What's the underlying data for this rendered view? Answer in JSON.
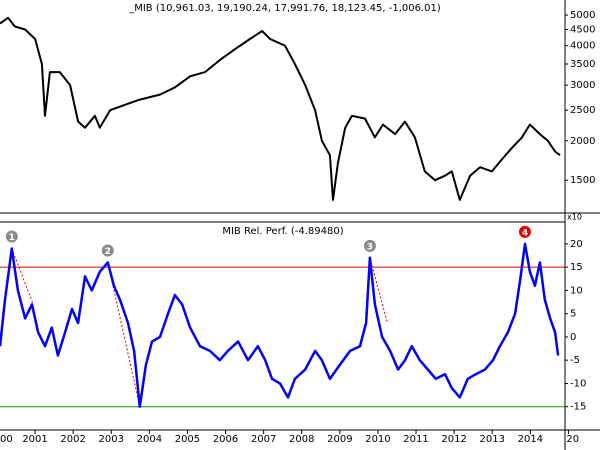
{
  "chart_data": [
    {
      "type": "line",
      "title": "_MIB (10,961.03, 19,190.24, 17,991.76, 18,123.45, -1,006.01)",
      "axis_note": "x10",
      "log_scale": true,
      "color": "#000000",
      "xlim": [
        2000.08,
        2014.91
      ],
      "ylim": [
        1190,
        5580
      ],
      "yticks": [
        1500,
        2000,
        2500,
        3000,
        3500,
        4000,
        4500,
        5000
      ],
      "x": [
        2000.08,
        2000.29,
        2000.47,
        2000.74,
        2001.0,
        2001.18,
        2001.26,
        2001.39,
        2001.65,
        2001.92,
        2002.13,
        2002.31,
        2002.57,
        2002.7,
        2002.97,
        2003.36,
        2003.75,
        2004.28,
        2004.67,
        2005.07,
        2005.46,
        2005.85,
        2006.25,
        2006.64,
        2006.96,
        2007.17,
        2007.56,
        2007.82,
        2008.09,
        2008.35,
        2008.53,
        2008.74,
        2008.82,
        2008.95,
        2009.14,
        2009.32,
        2009.66,
        2009.92,
        2010.13,
        2010.45,
        2010.71,
        2010.97,
        2011.23,
        2011.5,
        2011.76,
        2011.94,
        2012.15,
        2012.42,
        2012.68,
        2012.99,
        2013.26,
        2013.52,
        2013.78,
        2013.99,
        2014.25,
        2014.46,
        2014.65,
        2014.78
      ],
      "values": [
        4700,
        4900,
        4600,
        4500,
        4200,
        3500,
        2400,
        3300,
        3300,
        3000,
        2300,
        2200,
        2400,
        2200,
        2500,
        2600,
        2700,
        2800,
        2950,
        3200,
        3300,
        3600,
        3900,
        4200,
        4450,
        4200,
        4000,
        3500,
        3000,
        2500,
        2000,
        1800,
        1300,
        1700,
        2200,
        2400,
        2350,
        2050,
        2250,
        2100,
        2300,
        2050,
        1600,
        1500,
        1550,
        1600,
        1300,
        1550,
        1650,
        1600,
        1750,
        1900,
        2050,
        2250,
        2100,
        2000,
        1850,
        1800
      ]
    },
    {
      "type": "line",
      "title": "MIB Rel. Perf. (-4.89480)",
      "color": "#0000ff",
      "xlim": [
        2000.08,
        2014.91
      ],
      "ylim": [
        -20,
        24.7
      ],
      "yticks": [
        -15,
        -10,
        -5,
        0,
        5,
        10,
        15,
        20
      ],
      "xticks": [
        {
          "value": 2000,
          "label": "00"
        },
        2001,
        2002,
        2003,
        2004,
        2005,
        2006,
        2007,
        2008,
        2009,
        2010,
        2011,
        2012,
        2013,
        2014,
        {
          "value": 2015,
          "label": "20"
        }
      ],
      "hlines": [
        {
          "value": 15,
          "color": "#e00000"
        },
        {
          "value": -15,
          "color": "#00a000"
        }
      ],
      "x": [
        2000.08,
        2000.21,
        2000.39,
        2000.55,
        2000.74,
        2000.92,
        2001.08,
        2001.26,
        2001.44,
        2001.6,
        2001.79,
        2001.97,
        2002.13,
        2002.31,
        2002.49,
        2002.7,
        2002.91,
        2003.07,
        2003.23,
        2003.44,
        2003.6,
        2003.75,
        2003.91,
        2004.07,
        2004.28,
        2004.49,
        2004.67,
        2004.86,
        2005.07,
        2005.33,
        2005.59,
        2005.85,
        2006.06,
        2006.33,
        2006.59,
        2006.85,
        2007.04,
        2007.22,
        2007.43,
        2007.64,
        2007.82,
        2008.09,
        2008.35,
        2008.53,
        2008.74,
        2009.0,
        2009.27,
        2009.53,
        2009.69,
        2009.79,
        2009.92,
        2010.11,
        2010.32,
        2010.53,
        2010.71,
        2010.89,
        2011.1,
        2011.31,
        2011.52,
        2011.76,
        2011.94,
        2012.15,
        2012.36,
        2012.57,
        2012.81,
        2013.02,
        2013.2,
        2013.41,
        2013.6,
        2013.73,
        2013.86,
        2013.99,
        2014.12,
        2014.25,
        2014.38,
        2014.52,
        2014.65,
        2014.73
      ],
      "values": [
        -2,
        8,
        19,
        10,
        4,
        7,
        1,
        -2,
        2,
        -4,
        1,
        6,
        3,
        13,
        10,
        14,
        16,
        11,
        8,
        3,
        -3,
        -15,
        -6,
        -1,
        0,
        5,
        9,
        7,
        2,
        -2,
        -3,
        -5,
        -3,
        -1,
        -5,
        -2,
        -5,
        -9,
        -10,
        -13,
        -9,
        -7,
        -3,
        -5,
        -9,
        -6,
        -3,
        -2,
        3,
        17,
        7,
        0,
        -3,
        -7,
        -5,
        -2,
        -5,
        -7,
        -9,
        -8,
        -11,
        -13,
        -9,
        -8,
        -7,
        -5,
        -2,
        1,
        5,
        12,
        20,
        14,
        11,
        16,
        8,
        4,
        1,
        -4
      ],
      "trend_lines": [
        {
          "x": [
            2000.39,
            2000.95
          ],
          "y": [
            19,
            7
          ],
          "color": "#e00000"
        },
        {
          "x": [
            2002.91,
            2003.75
          ],
          "y": [
            16,
            -15
          ],
          "color": "#e00000"
        },
        {
          "x": [
            2009.79,
            2010.25
          ],
          "y": [
            17,
            3
          ],
          "color": "#e00000"
        }
      ],
      "annotations": [
        {
          "x": 2000.39,
          "y": 19,
          "label": "1",
          "color": "#8a8a8a"
        },
        {
          "x": 2002.91,
          "y": 16,
          "label": "2",
          "color": "#8a8a8a"
        },
        {
          "x": 2009.79,
          "y": 17,
          "label": "3",
          "color": "#8a8a8a"
        },
        {
          "x": 2013.86,
          "y": 20,
          "label": "4",
          "color": "#e00000"
        }
      ]
    }
  ]
}
